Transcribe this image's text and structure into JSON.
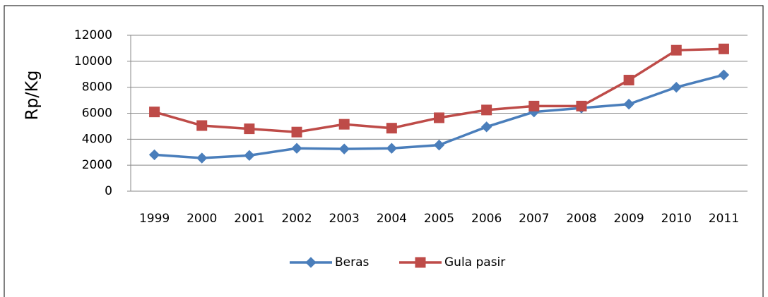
{
  "chart_data": {
    "type": "line",
    "y_label": "Rp/Kg",
    "categories": [
      "1999",
      "2000",
      "2001",
      "2002",
      "2003",
      "2004",
      "2005",
      "2006",
      "2007",
      "2008",
      "2009",
      "2010",
      "2011"
    ],
    "series": [
      {
        "name": "Beras",
        "color": "#4a7ebb",
        "marker": "diamond",
        "values": [
          2800,
          2550,
          2750,
          3300,
          3250,
          3300,
          3550,
          4950,
          6100,
          6400,
          6700,
          8000,
          8950
        ]
      },
      {
        "name": "Gula pasir",
        "color": "#be4b48",
        "marker": "square",
        "values": [
          6100,
          5050,
          4800,
          4550,
          5150,
          4850,
          5650,
          6250,
          6550,
          6550,
          8550,
          10850,
          10950
        ]
      }
    ],
    "ylim": [
      0,
      12000
    ],
    "yticks": [
      0,
      2000,
      4000,
      6000,
      8000,
      10000,
      12000
    ],
    "grid": true,
    "legend": "bottom"
  }
}
